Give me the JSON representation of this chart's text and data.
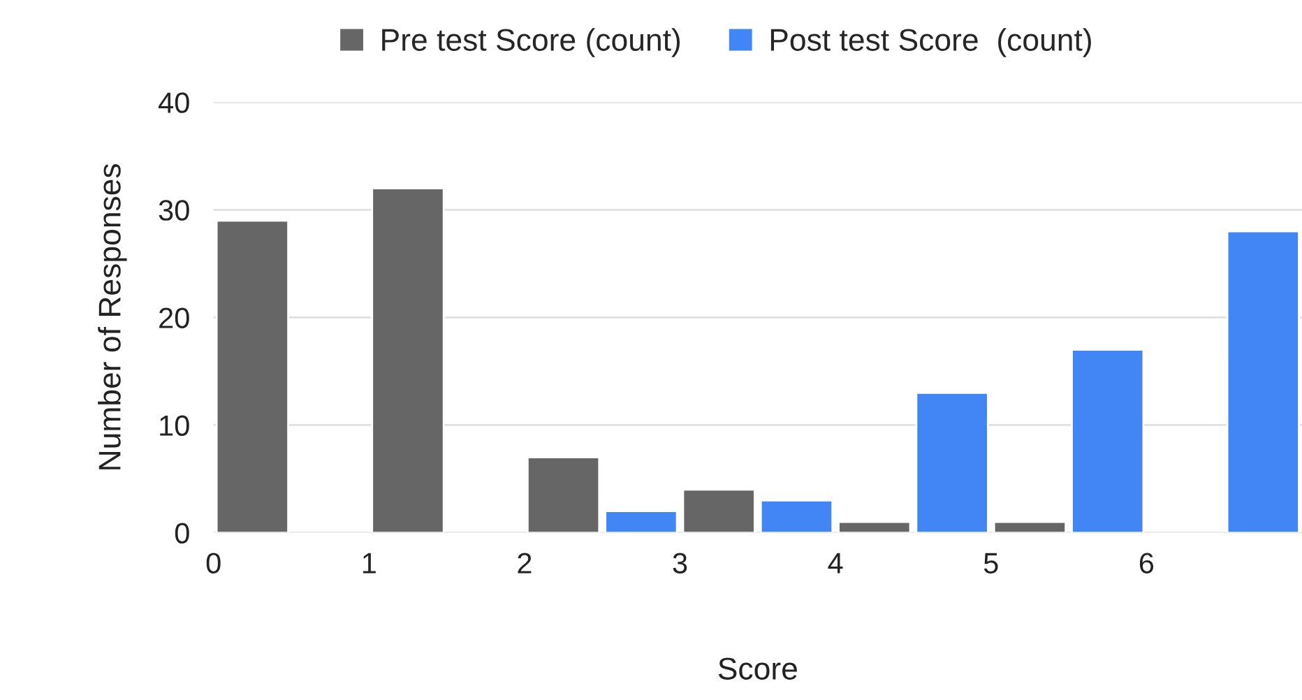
{
  "chart_data": {
    "type": "bar",
    "xlabel": "Score",
    "ylabel": "Number of Responses",
    "series": [
      {
        "name": "Pre test Score (count)",
        "color": "#666666",
        "x": [
          0.25,
          1.25,
          2.25,
          3.25,
          4.25,
          5.25
        ],
        "values": [
          29,
          32,
          7,
          4,
          1,
          1
        ]
      },
      {
        "name": "Post test Score  (count)",
        "color": "#4285f4",
        "x": [
          2.75,
          3.75,
          4.75,
          5.75,
          6.75
        ],
        "values": [
          2,
          3,
          13,
          17,
          28
        ]
      }
    ],
    "xlim": [
      0,
      7
    ],
    "xticks": [
      0,
      1,
      2,
      3,
      4,
      5,
      6
    ],
    "ylim": [
      0,
      40
    ],
    "yticks": [
      0,
      10,
      20,
      30,
      40
    ],
    "grid": "y",
    "legend": "top"
  }
}
